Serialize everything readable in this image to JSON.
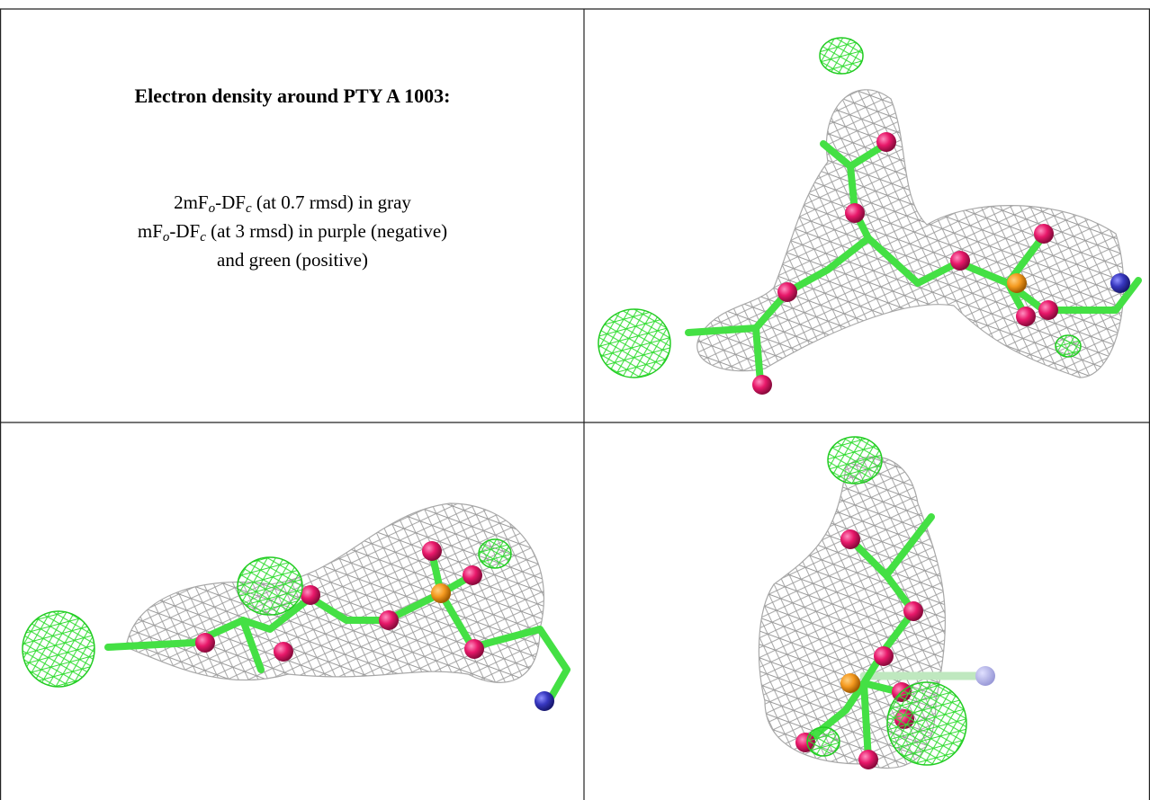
{
  "panel": {
    "title": "Electron density around PTY A 1003:",
    "legend": [
      [
        "2mF",
        "o",
        "-DF",
        "c",
        " (at 0.7 rmsd) in gray"
      ],
      [
        "mF",
        "o",
        "-DF",
        "c",
        " (at 3 rmsd) in purple (negative)"
      ],
      [
        "and green (positive)"
      ]
    ]
  }
}
